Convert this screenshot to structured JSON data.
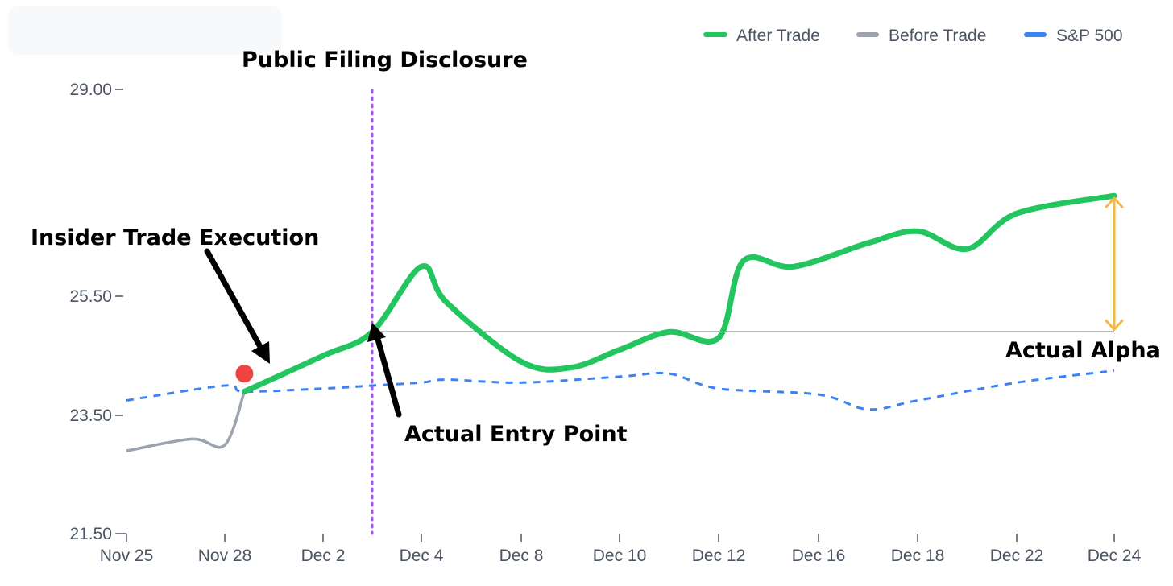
{
  "chart_data": {
    "type": "line",
    "x": [
      "Nov 25",
      "Nov 28",
      "Dec 2",
      "Dec 4",
      "Dec 8",
      "Dec 10",
      "Dec 12",
      "Dec 16",
      "Dec 18",
      "Dec 22",
      "Dec 24"
    ],
    "ylim": [
      21.5,
      29.0
    ],
    "yticks": [
      "29.00",
      "25.50",
      "23.50",
      "21.50"
    ],
    "grid": false,
    "legend_position": "top-right",
    "series": [
      {
        "name": "After Trade",
        "color": "#22c55e",
        "style": "solid",
        "points": [
          {
            "x": "Nov 29",
            "y": 23.9
          },
          {
            "x": "Dec 2",
            "y": 24.5
          },
          {
            "x": "Dec 3",
            "y": 24.9
          },
          {
            "x": "Dec 4",
            "y": 26.0
          },
          {
            "x": "Dec 5",
            "y": 25.4
          },
          {
            "x": "Dec 8",
            "y": 24.4
          },
          {
            "x": "Dec 9",
            "y": 24.3
          },
          {
            "x": "Dec 10",
            "y": 24.6
          },
          {
            "x": "Dec 11",
            "y": 24.9
          },
          {
            "x": "Dec 12",
            "y": 24.8
          },
          {
            "x": "Dec 13",
            "y": 26.1
          },
          {
            "x": "Dec 15",
            "y": 26.0
          },
          {
            "x": "Dec 17",
            "y": 26.4
          },
          {
            "x": "Dec 18",
            "y": 26.6
          },
          {
            "x": "Dec 20",
            "y": 26.3
          },
          {
            "x": "Dec 22",
            "y": 26.9
          },
          {
            "x": "Dec 24",
            "y": 27.2
          }
        ]
      },
      {
        "name": "Before Trade",
        "color": "#9ca3af",
        "style": "solid",
        "points": [
          {
            "x": "Nov 25",
            "y": 22.9
          },
          {
            "x": "Nov 27",
            "y": 23.1
          },
          {
            "x": "Nov 28",
            "y": 23.0
          },
          {
            "x": "Nov 29",
            "y": 23.9
          }
        ]
      },
      {
        "name": "S&P 500",
        "color": "#3b82f6",
        "style": "dashed",
        "points": [
          {
            "x": "Nov 25",
            "y": 23.75
          },
          {
            "x": "Nov 28",
            "y": 24.0
          },
          {
            "x": "Nov 29",
            "y": 23.9
          },
          {
            "x": "Dec 2",
            "y": 23.95
          },
          {
            "x": "Dec 3",
            "y": 24.0
          },
          {
            "x": "Dec 4",
            "y": 24.05
          },
          {
            "x": "Dec 5",
            "y": 24.1
          },
          {
            "x": "Dec 8",
            "y": 24.05
          },
          {
            "x": "Dec 10",
            "y": 24.15
          },
          {
            "x": "Dec 11",
            "y": 24.2
          },
          {
            "x": "Dec 12",
            "y": 23.95
          },
          {
            "x": "Dec 16",
            "y": 23.85
          },
          {
            "x": "Dec 17",
            "y": 23.6
          },
          {
            "x": "Dec 18",
            "y": 23.75
          },
          {
            "x": "Dec 22",
            "y": 24.05
          },
          {
            "x": "Dec 24",
            "y": 24.25
          }
        ]
      }
    ],
    "insider_trade_point": {
      "x": "Nov 29",
      "y": 24.2
    },
    "vertical_marker": {
      "x": "Dec 3",
      "label": "Public Filing Disclosure"
    },
    "entry_level": {
      "y": 24.9,
      "from": "Dec 3",
      "to": "Dec 24"
    },
    "annotations": {
      "insider": "Insider  Trade Execution",
      "entry": "Actual Entry Point",
      "alpha": "Actual Alpha"
    }
  },
  "colors": {
    "axis": "#4b5563",
    "marker_line": "#a855f7",
    "trade_dot": "#ef4444",
    "alpha_arrow": "#f5b942",
    "annotation_arrow": "#000000",
    "entry_line": "#000000"
  }
}
